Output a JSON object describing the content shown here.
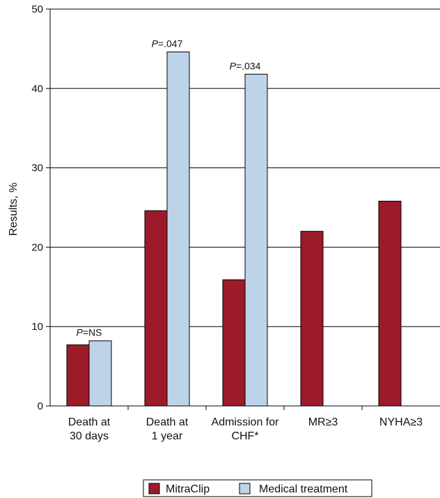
{
  "chart_data": {
    "type": "bar",
    "categories": [
      [
        "Death at",
        "30 days"
      ],
      [
        "Death at",
        "1 year"
      ],
      [
        "Admission for",
        "CHF*"
      ],
      [
        "MR≥3"
      ],
      [
        "NYHA≥3"
      ]
    ],
    "series": [
      {
        "name": "MitraClip",
        "color": "#9b1b2a",
        "values": [
          7.7,
          24.6,
          15.9,
          22.0,
          25.8
        ]
      },
      {
        "name": "Medical treatment",
        "color": "#bdd3e8",
        "values": [
          8.2,
          44.6,
          41.8,
          null,
          null
        ]
      }
    ],
    "annotations": [
      {
        "category_index": 0,
        "italic": "P",
        "text": "=NS"
      },
      {
        "category_index": 1,
        "italic": "P",
        "text": "=.047"
      },
      {
        "category_index": 2,
        "italic": "P",
        "text": "=.034"
      }
    ],
    "ylabel": "Results, %",
    "ylim": [
      0,
      50
    ],
    "yticks": [
      0,
      10,
      20,
      30,
      40,
      50
    ],
    "grid": true,
    "legend_position": "bottom"
  }
}
